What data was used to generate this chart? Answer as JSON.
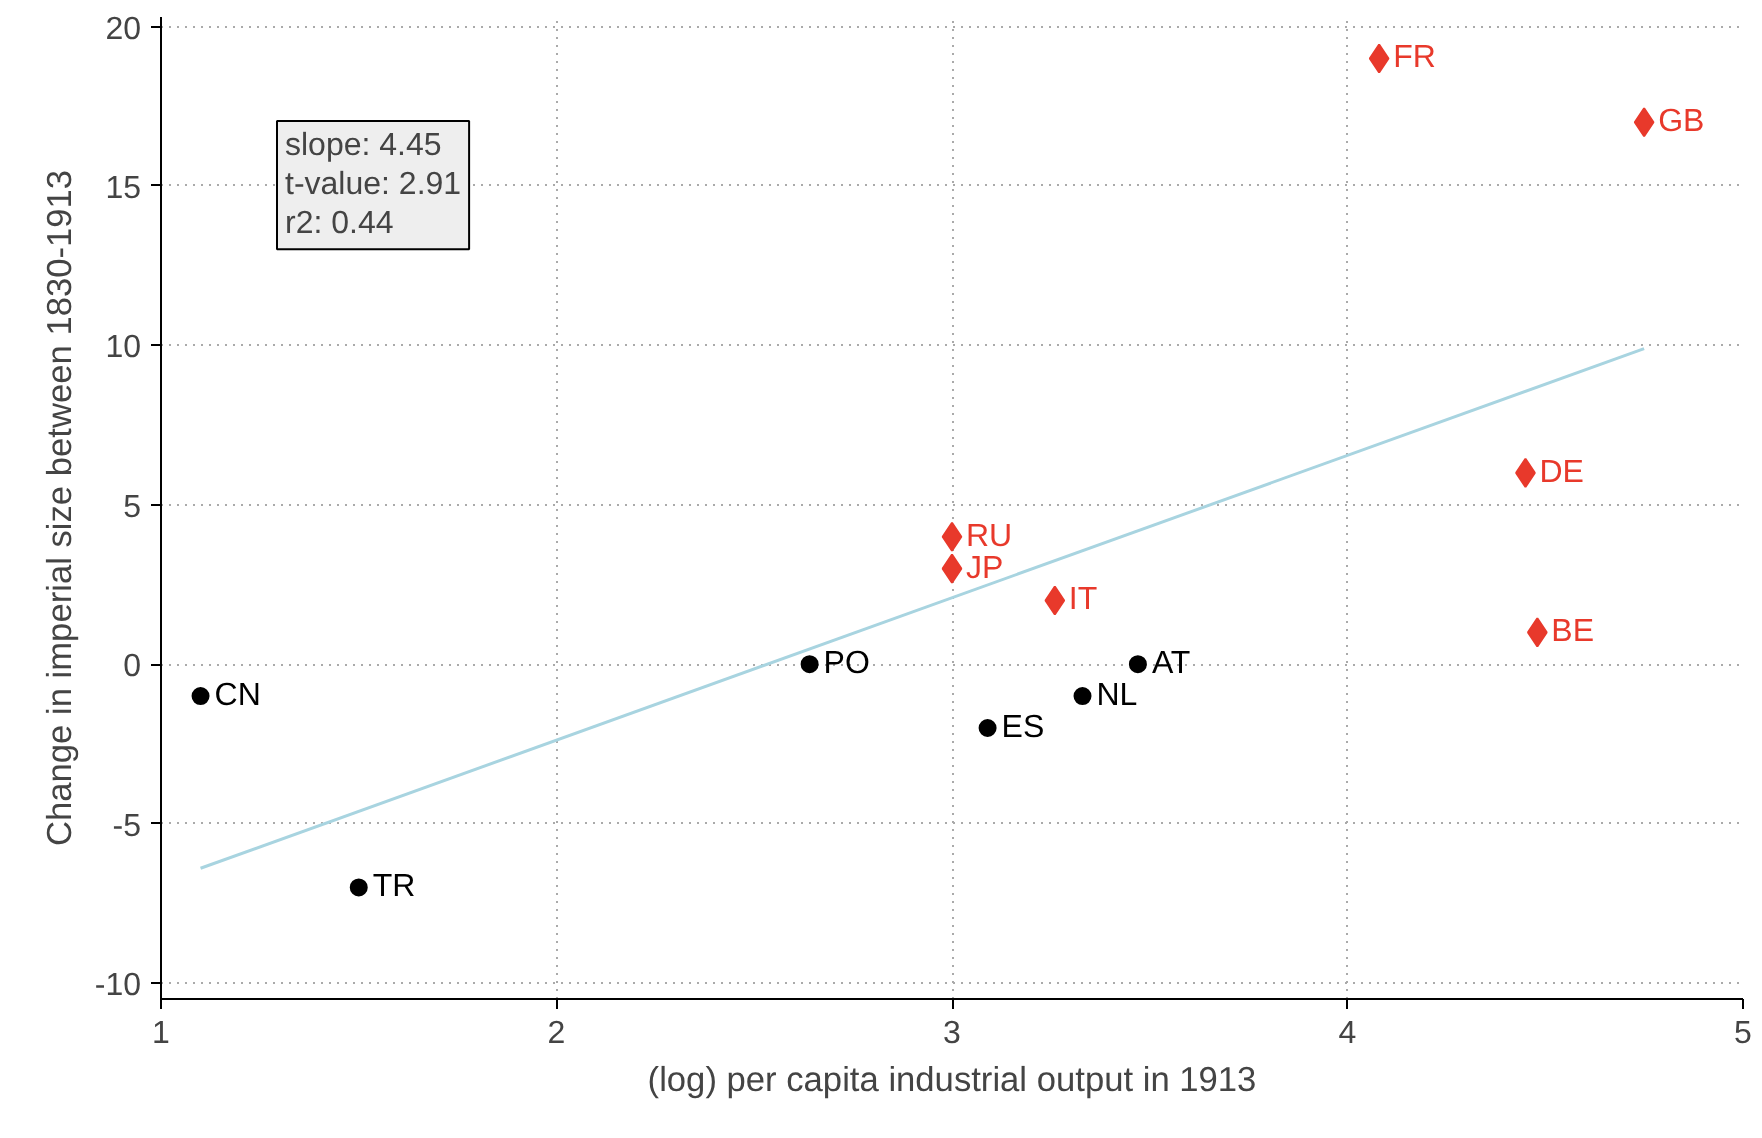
{
  "chart_data": {
    "type": "scatter",
    "xlabel": "(log) per capita industrial output in 1913",
    "ylabel": "Change in imperial size between 1830-1913",
    "xlim": [
      1,
      5
    ],
    "ylim": [
      -10.5,
      20.3
    ],
    "xticks": [
      1,
      2,
      3,
      4,
      5
    ],
    "yticks": [
      -10,
      -5,
      0,
      5,
      10,
      15,
      20
    ],
    "grid": true,
    "series": [
      {
        "color": "#000000",
        "marker": "circle",
        "x": [
          1.1,
          1.5,
          2.64,
          3.09,
          3.33,
          3.47
        ],
        "values": [
          -1,
          -7,
          0,
          -2,
          -1,
          0
        ]
      },
      {
        "color": "#e8392b",
        "marker": "diamond",
        "x": [
          3.0,
          3.0,
          3.26,
          4.08,
          4.75,
          4.45,
          4.48
        ],
        "values": [
          4,
          3,
          2,
          19,
          17,
          6,
          1
        ]
      },
      {
        "type": "line",
        "color": "#a8d4e0",
        "x": [
          1.1,
          4.75
        ],
        "values": [
          -6.4,
          9.9
        ]
      }
    ],
    "annotations": [
      "slope: 4.45",
      "t-value: 2.91",
      "r2: 0.44",
      {
        "text": "CN",
        "x": 1.1,
        "y": -1
      },
      {
        "text": "TR",
        "x": 1.5,
        "y": -7
      },
      {
        "text": "PO",
        "x": 2.64,
        "y": 0
      },
      {
        "text": "ES",
        "x": 3.09,
        "y": -2
      },
      {
        "text": "NL",
        "x": 3.33,
        "y": -1
      },
      {
        "text": "AT",
        "x": 3.47,
        "y": 0
      },
      {
        "text": "RU",
        "x": 3.0,
        "y": 4
      },
      {
        "text": "JP",
        "x": 3.0,
        "y": 3
      },
      {
        "text": "IT",
        "x": 3.26,
        "y": 2
      },
      {
        "text": "FR",
        "x": 4.08,
        "y": 19
      },
      {
        "text": "GB",
        "x": 4.75,
        "y": 17
      },
      {
        "text": "DE",
        "x": 4.45,
        "y": 6
      },
      {
        "text": "BE",
        "x": 4.48,
        "y": 1
      }
    ]
  }
}
